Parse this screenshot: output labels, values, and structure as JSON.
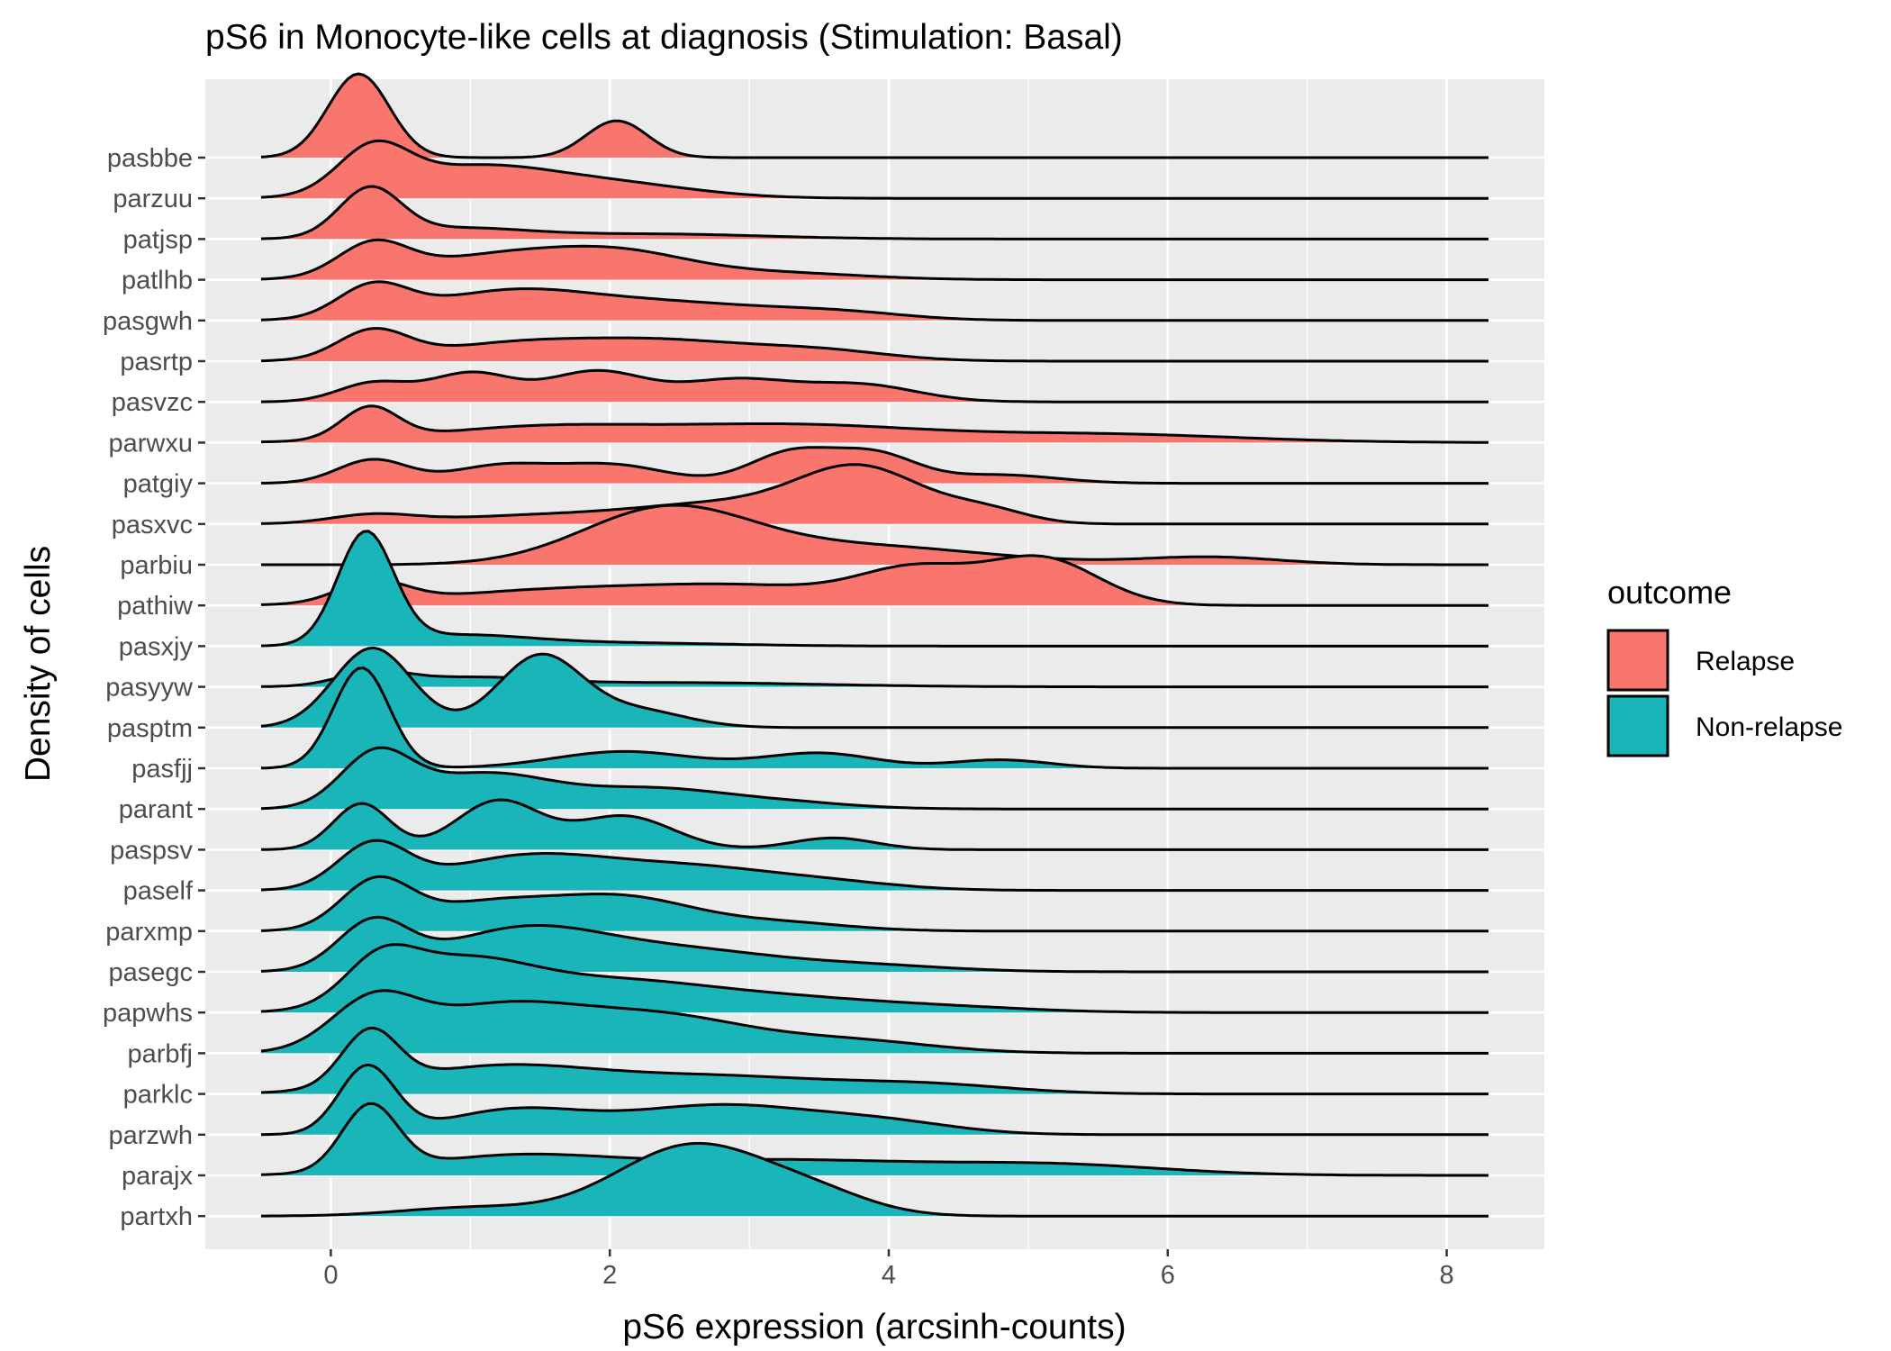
{
  "chart_data": {
    "type": "ridgeline",
    "title": "pS6 in Monocyte-like cells at diagnosis (Stimulation: Basal)",
    "xlabel": "pS6 expression (arcsinh-counts)",
    "ylabel": "Density of cells",
    "xlim": [
      -0.9,
      8.7
    ],
    "x_ticks": [
      0,
      2,
      4,
      6,
      8
    ],
    "density_range": [
      -0.5,
      8.3
    ],
    "grid": true,
    "legend": {
      "title": "outcome",
      "position": "right",
      "entries": [
        {
          "label": "Relapse",
          "color": "#F8766D"
        },
        {
          "label": "Non-relapse",
          "color": "#19B5B8"
        }
      ]
    },
    "series": [
      {
        "name": "pasbbe",
        "outcome": "Relapse",
        "peaks": [
          [
            0.2,
            0.22,
            1.0
          ],
          [
            2.05,
            0.22,
            0.44
          ]
        ]
      },
      {
        "name": "parzuu",
        "outcome": "Relapse",
        "peaks": [
          [
            0.3,
            0.25,
            0.52
          ],
          [
            1.0,
            0.55,
            0.35
          ],
          [
            2.0,
            0.6,
            0.17
          ]
        ]
      },
      {
        "name": "patjsp",
        "outcome": "Relapse",
        "peaks": [
          [
            0.28,
            0.22,
            0.57
          ],
          [
            0.9,
            0.5,
            0.12
          ],
          [
            2.3,
            0.8,
            0.06
          ]
        ]
      },
      {
        "name": "patlhb",
        "outcome": "Relapse",
        "peaks": [
          [
            0.3,
            0.25,
            0.38
          ],
          [
            1.2,
            0.6,
            0.28
          ],
          [
            2.1,
            0.5,
            0.27
          ],
          [
            3.2,
            0.6,
            0.08
          ]
        ]
      },
      {
        "name": "pasgwh",
        "outcome": "Relapse",
        "peaks": [
          [
            0.3,
            0.25,
            0.37
          ],
          [
            1.3,
            0.6,
            0.35
          ],
          [
            2.5,
            0.6,
            0.18
          ],
          [
            3.6,
            0.5,
            0.1
          ]
        ]
      },
      {
        "name": "pasrtp",
        "outcome": "Relapse",
        "peaks": [
          [
            0.3,
            0.25,
            0.34
          ],
          [
            1.3,
            0.6,
            0.2
          ],
          [
            2.4,
            0.6,
            0.22
          ],
          [
            3.5,
            0.5,
            0.12
          ]
        ]
      },
      {
        "name": "pasvzc",
        "outcome": "Relapse",
        "peaks": [
          [
            0.3,
            0.25,
            0.22
          ],
          [
            1.0,
            0.3,
            0.34
          ],
          [
            1.9,
            0.35,
            0.36
          ],
          [
            2.9,
            0.4,
            0.26
          ],
          [
            3.8,
            0.4,
            0.2
          ]
        ]
      },
      {
        "name": "parwxu",
        "outcome": "Relapse",
        "peaks": [
          [
            0.28,
            0.2,
            0.38
          ],
          [
            1.5,
            0.8,
            0.18
          ],
          [
            3.3,
            0.9,
            0.2
          ],
          [
            5.5,
            1.0,
            0.1
          ]
        ]
      },
      {
        "name": "patgiy",
        "outcome": "Relapse",
        "peaks": [
          [
            0.3,
            0.25,
            0.28
          ],
          [
            1.2,
            0.35,
            0.2
          ],
          [
            2.0,
            0.4,
            0.22
          ],
          [
            3.3,
            0.3,
            0.36
          ],
          [
            3.9,
            0.3,
            0.34
          ],
          [
            4.8,
            0.4,
            0.1
          ]
        ]
      },
      {
        "name": "pasxvc",
        "outcome": "Relapse",
        "peaks": [
          [
            0.3,
            0.3,
            0.1
          ],
          [
            1.5,
            0.7,
            0.1
          ],
          [
            2.8,
            0.6,
            0.22
          ],
          [
            3.8,
            0.45,
            0.65
          ],
          [
            4.7,
            0.3,
            0.15
          ]
        ]
      },
      {
        "name": "parbiu",
        "outcome": "Relapse",
        "peaks": [
          [
            2.4,
            0.6,
            0.64
          ],
          [
            3.8,
            0.9,
            0.22
          ],
          [
            6.3,
            0.5,
            0.09
          ]
        ]
      },
      {
        "name": "pathiw",
        "outcome": "Relapse",
        "peaks": [
          [
            0.3,
            0.25,
            0.25
          ],
          [
            1.5,
            0.8,
            0.16
          ],
          [
            3.0,
            0.8,
            0.22
          ],
          [
            4.2,
            0.4,
            0.38
          ],
          [
            5.1,
            0.4,
            0.55
          ]
        ]
      },
      {
        "name": "pasxjy",
        "outcome": "Non-relapse",
        "peaks": [
          [
            0.25,
            0.2,
            1.32
          ],
          [
            0.9,
            0.5,
            0.12
          ],
          [
            2.0,
            0.8,
            0.04
          ]
        ]
      },
      {
        "name": "pasyyw",
        "outcome": "Non-relapse",
        "peaks": [
          [
            0.3,
            0.25,
            0.15
          ],
          [
            1.0,
            0.5,
            0.1
          ],
          [
            2.5,
            1.0,
            0.05
          ]
        ]
      },
      {
        "name": "pasptm",
        "outcome": "Non-relapse",
        "peaks": [
          [
            0.3,
            0.28,
            0.95
          ],
          [
            1.5,
            0.3,
            0.85
          ],
          [
            2.2,
            0.35,
            0.2
          ]
        ]
      },
      {
        "name": "pasfjj",
        "outcome": "Non-relapse",
        "peaks": [
          [
            0.22,
            0.2,
            1.2
          ],
          [
            2.1,
            0.5,
            0.2
          ],
          [
            3.5,
            0.4,
            0.18
          ],
          [
            4.8,
            0.35,
            0.1
          ]
        ]
      },
      {
        "name": "parant",
        "outcome": "Non-relapse",
        "peaks": [
          [
            0.32,
            0.25,
            0.6
          ],
          [
            1.1,
            0.5,
            0.42
          ],
          [
            2.3,
            0.5,
            0.22
          ],
          [
            3.2,
            0.5,
            0.08
          ]
        ]
      },
      {
        "name": "paspsv",
        "outcome": "Non-relapse",
        "peaks": [
          [
            0.22,
            0.2,
            0.55
          ],
          [
            1.2,
            0.3,
            0.58
          ],
          [
            2.1,
            0.35,
            0.4
          ],
          [
            3.6,
            0.3,
            0.14
          ]
        ]
      },
      {
        "name": "paself",
        "outcome": "Non-relapse",
        "peaks": [
          [
            0.3,
            0.25,
            0.52
          ],
          [
            1.4,
            0.6,
            0.4
          ],
          [
            2.6,
            0.6,
            0.25
          ],
          [
            3.6,
            0.5,
            0.08
          ]
        ]
      },
      {
        "name": "parxmp",
        "outcome": "Non-relapse",
        "peaks": [
          [
            0.32,
            0.25,
            0.55
          ],
          [
            1.1,
            0.5,
            0.32
          ],
          [
            2.1,
            0.5,
            0.38
          ],
          [
            3.2,
            0.5,
            0.1
          ]
        ]
      },
      {
        "name": "pasegc",
        "outcome": "Non-relapse",
        "peaks": [
          [
            0.3,
            0.25,
            0.55
          ],
          [
            1.4,
            0.6,
            0.52
          ],
          [
            2.6,
            0.6,
            0.22
          ],
          [
            3.8,
            0.6,
            0.08
          ]
        ]
      },
      {
        "name": "papwhs",
        "outcome": "Non-relapse",
        "peaks": [
          [
            0.35,
            0.25,
            0.45
          ],
          [
            0.9,
            0.5,
            0.55
          ],
          [
            2.0,
            0.7,
            0.35
          ],
          [
            3.3,
            0.7,
            0.15
          ],
          [
            4.5,
            0.6,
            0.05
          ]
        ]
      },
      {
        "name": "parbfj",
        "outcome": "Non-relapse",
        "peaks": [
          [
            0.3,
            0.3,
            0.55
          ],
          [
            1.2,
            0.6,
            0.55
          ],
          [
            2.4,
            0.6,
            0.4
          ],
          [
            3.7,
            0.6,
            0.15
          ]
        ]
      },
      {
        "name": "parklc",
        "outcome": "Non-relapse",
        "peaks": [
          [
            0.28,
            0.2,
            0.65
          ],
          [
            1.2,
            0.7,
            0.32
          ],
          [
            2.8,
            0.8,
            0.2
          ],
          [
            4.3,
            0.6,
            0.1
          ]
        ]
      },
      {
        "name": "parzwh",
        "outcome": "Non-relapse",
        "peaks": [
          [
            0.26,
            0.2,
            0.8
          ],
          [
            1.3,
            0.5,
            0.28
          ],
          [
            2.8,
            0.7,
            0.35
          ],
          [
            4.0,
            0.5,
            0.12
          ]
        ]
      },
      {
        "name": "parajx",
        "outcome": "Non-relapse",
        "peaks": [
          [
            0.28,
            0.2,
            0.78
          ],
          [
            1.3,
            0.7,
            0.22
          ],
          [
            3.2,
            1.0,
            0.18
          ],
          [
            5.2,
            0.8,
            0.12
          ]
        ]
      },
      {
        "name": "partxh",
        "outcome": "Non-relapse",
        "peaks": [
          [
            1.0,
            0.5,
            0.1
          ],
          [
            2.6,
            0.55,
            0.85
          ],
          [
            3.5,
            0.4,
            0.2
          ]
        ]
      }
    ]
  }
}
